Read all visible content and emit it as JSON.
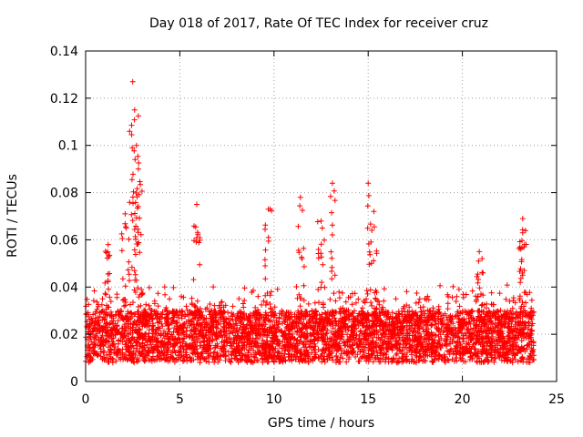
{
  "chart_data": {
    "type": "scatter",
    "title": "Day 018 of 2017, Rate Of TEC Index for receiver cruz",
    "xlabel": "GPS time / hours",
    "ylabel": "ROTI / TECUs",
    "xlim": [
      0,
      25
    ],
    "ylim": [
      0,
      0.14
    ],
    "xticks": [
      "0",
      "5",
      "10",
      "15",
      "20",
      "25"
    ],
    "yticks": [
      "0",
      "0.02",
      "0.04",
      "0.06",
      "0.08",
      "0.1",
      "0.12",
      "0.14"
    ],
    "grid": true,
    "marker": "+",
    "color": "#ff0000",
    "data_extent_hours": [
      0,
      23.8
    ],
    "baseline_band": [
      0.008,
      0.03
    ],
    "spikes": [
      {
        "x": 2.5,
        "y": 0.127
      },
      {
        "x": 2.6,
        "y": 0.115
      },
      {
        "x": 2.7,
        "y": 0.1
      },
      {
        "x": 2.8,
        "y": 0.09
      },
      {
        "x": 1.2,
        "y": 0.058
      },
      {
        "x": 2.1,
        "y": 0.071
      },
      {
        "x": 5.9,
        "y": 0.075
      },
      {
        "x": 9.7,
        "y": 0.073
      },
      {
        "x": 11.4,
        "y": 0.078
      },
      {
        "x": 12.5,
        "y": 0.068
      },
      {
        "x": 13.1,
        "y": 0.084
      },
      {
        "x": 15.0,
        "y": 0.084
      },
      {
        "x": 15.3,
        "y": 0.072
      },
      {
        "x": 20.9,
        "y": 0.055
      },
      {
        "x": 23.2,
        "y": 0.069
      },
      {
        "x": 23.2,
        "y": 0.063
      }
    ]
  }
}
